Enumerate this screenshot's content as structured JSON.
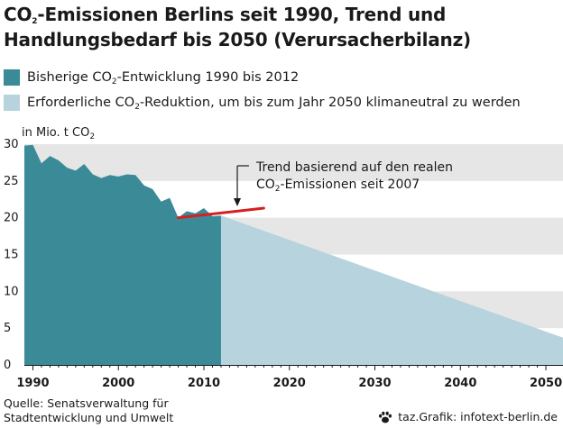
{
  "title": {
    "line1_pre": "CO",
    "line1_sub": "2",
    "line1_post": "-Emissionen Berlins seit 1990, Trend und",
    "line2": "Handlungsbedarf bis 2050 (Verursacherbilanz)"
  },
  "legend": [
    {
      "pre": "Bisherige CO",
      "sub": "2",
      "post": "-Entwicklung 1990 bis 2012",
      "color": "#3a8a98"
    },
    {
      "pre": "Erforderliche CO",
      "sub": "2",
      "post": "-Reduktion, um bis zum Jahr 2050 klimaneutral zu werden",
      "color": "#b7d3dd"
    }
  ],
  "unit": {
    "pre": "in Mio. t CO",
    "sub": "2"
  },
  "annotation": {
    "line1": "Trend basierend auf den realen",
    "line2_pre": "CO",
    "line2_sub": "2",
    "line2_post": "-Emissionen seit 2007"
  },
  "source": {
    "line1": "Quelle: Senatsverwaltung für",
    "line2": "Stadtentwicklung und Umwelt"
  },
  "credit": "taz.Grafik: infotext-berlin.de",
  "chart_data": {
    "type": "area",
    "xlim": [
      1989,
      2052
    ],
    "ylim": [
      0,
      30
    ],
    "y_ticks": [
      0,
      5,
      10,
      15,
      20,
      25,
      30
    ],
    "x_ticks": [
      1990,
      2000,
      2010,
      2020,
      2030,
      2040,
      2050
    ],
    "grid": "horizontal bands",
    "colors": {
      "historical": "#3a8a98",
      "required": "#b7d3dd",
      "trend": "#d42020",
      "band": "#e6e6e6"
    },
    "series": [
      {
        "name": "Bisherige CO2-Entwicklung 1990 bis 2012",
        "x": [
          1989,
          1990,
          1991,
          1992,
          1993,
          1994,
          1995,
          1996,
          1997,
          1998,
          1999,
          2000,
          2001,
          2002,
          2003,
          2004,
          2005,
          2006,
          2007,
          2008,
          2009,
          2010,
          2011,
          2012
        ],
        "y": [
          29.8,
          29.9,
          27.4,
          28.4,
          27.8,
          26.8,
          26.4,
          27.3,
          25.9,
          25.4,
          25.8,
          25.6,
          25.9,
          25.8,
          24.4,
          23.9,
          22.2,
          22.7,
          20.0,
          20.9,
          20.6,
          21.3,
          20.2,
          20.3
        ]
      },
      {
        "name": "Erforderliche CO2-Reduktion, um bis zum Jahr 2050 klimaneutral zu werden",
        "x": [
          2012,
          2052
        ],
        "y": [
          20.3,
          3.7
        ]
      },
      {
        "name": "Trend basierend auf den realen CO2-Emissionen seit 2007",
        "x": [
          2007,
          2017
        ],
        "y": [
          20.0,
          21.3
        ]
      }
    ]
  }
}
